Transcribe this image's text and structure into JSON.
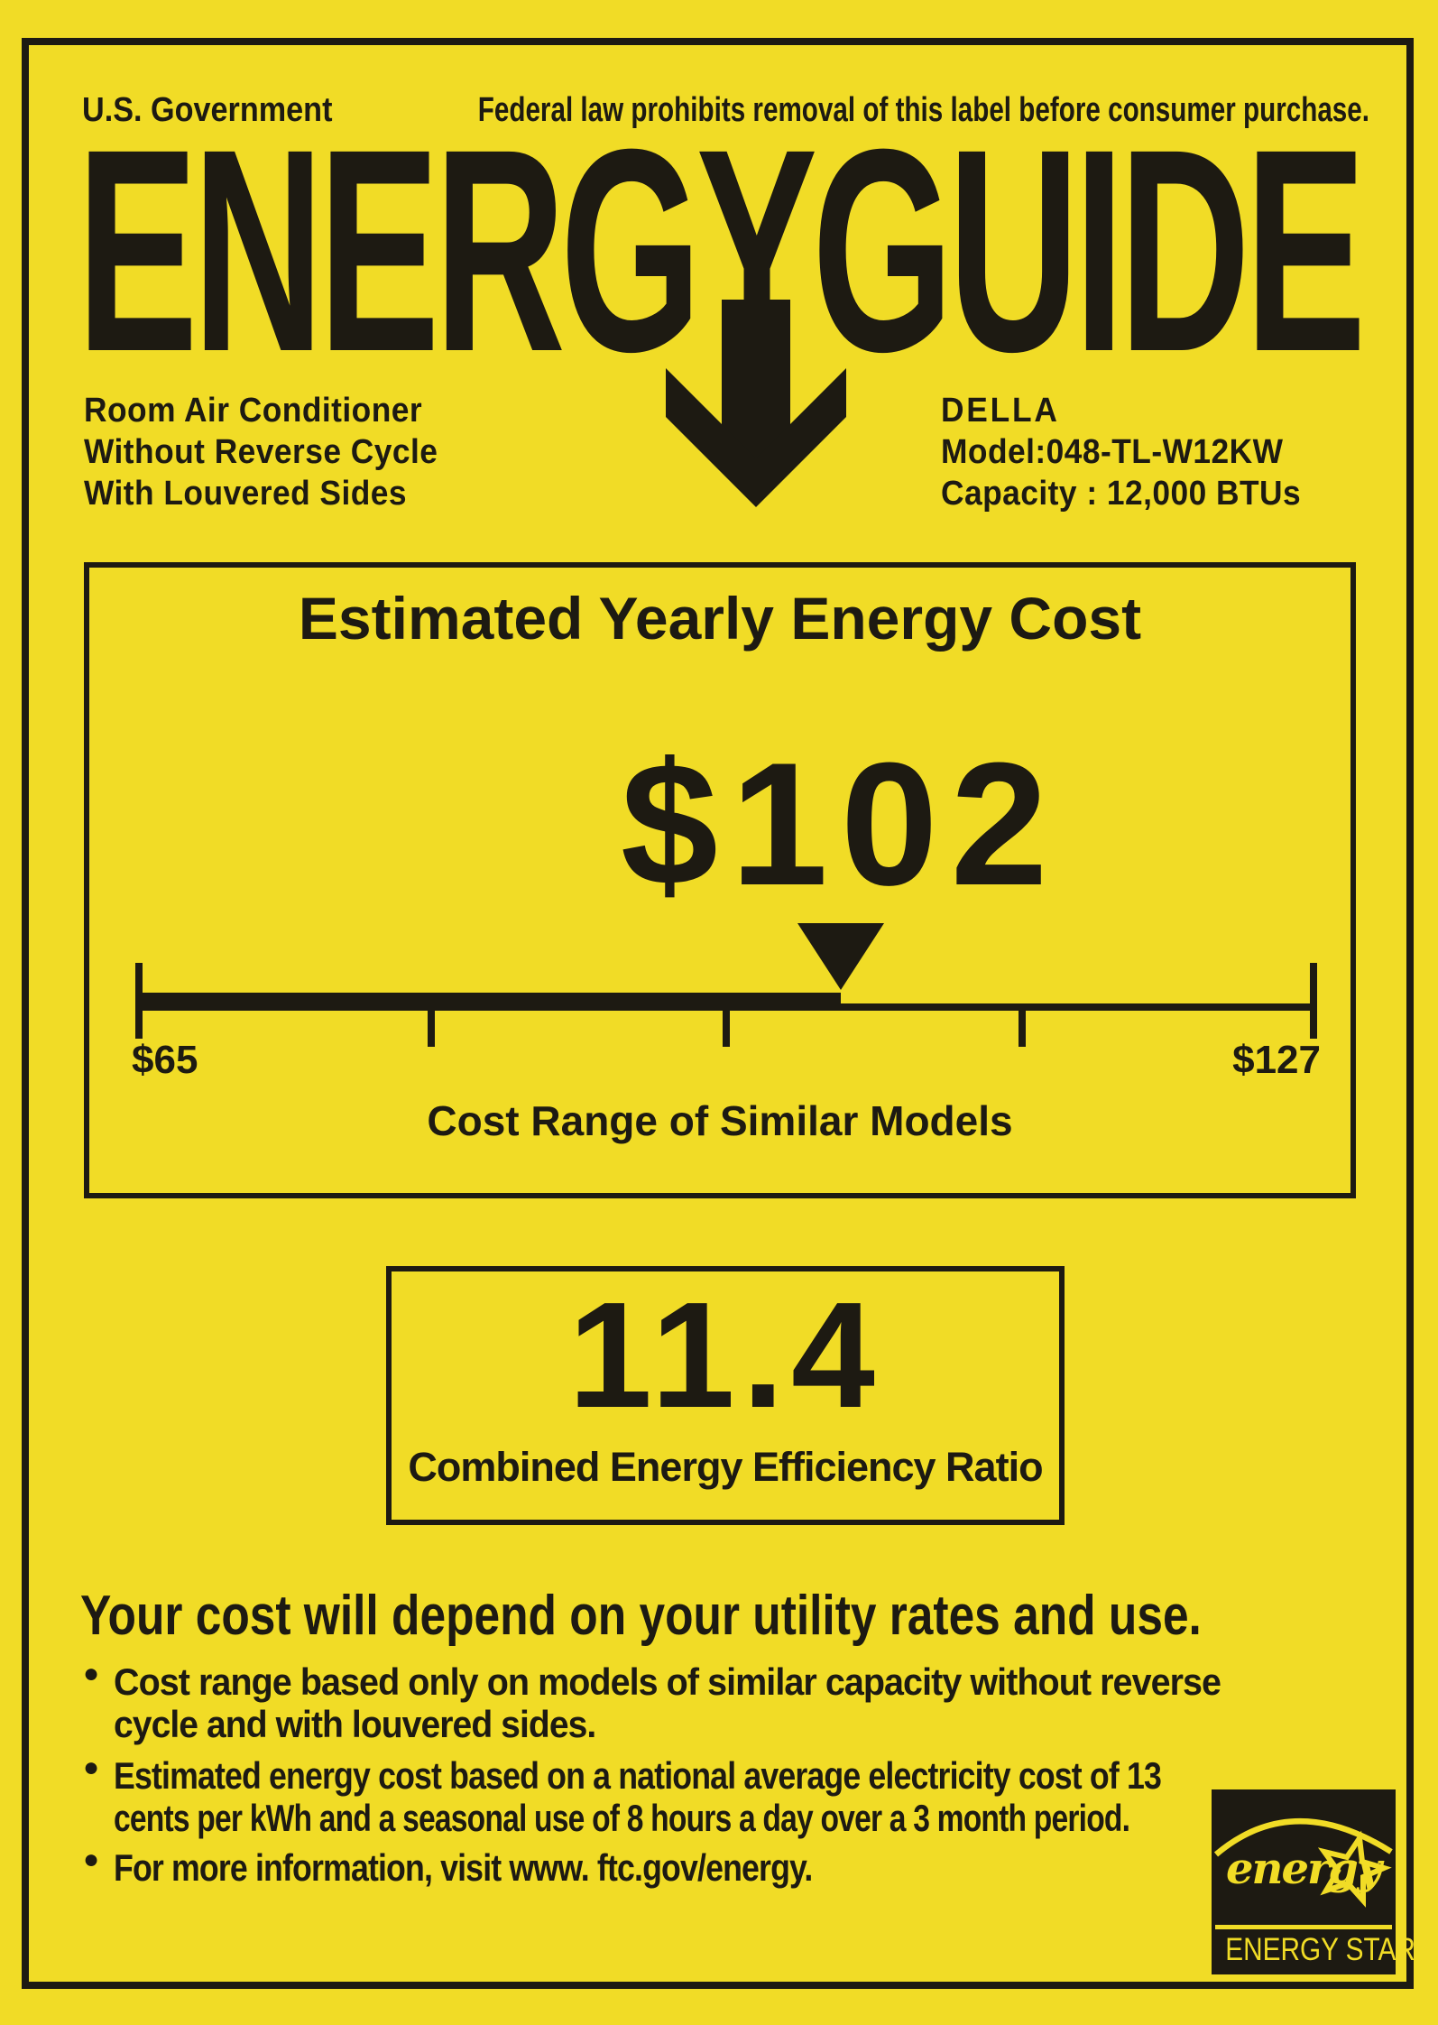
{
  "colors": {
    "background_yellow": "#f1dc26",
    "ink_black": "#1d1a12"
  },
  "header": {
    "government_label": "U.S. Government",
    "federal_notice": "Federal law prohibits removal of this label before consumer purchase.",
    "logo_text": "ENERGYGUIDE"
  },
  "product": {
    "type_lines": [
      "Room Air Conditioner",
      "Without Reverse Cycle",
      "With Louvered Sides"
    ],
    "brand": "DELLA",
    "model_label": "Model:048-TL-W12KW",
    "capacity_label": "Capacity : 12,000 BTUs"
  },
  "cost_box": {
    "title": "Estimated Yearly Energy Cost",
    "value_label": "$102",
    "caption": "Cost Range of Similar Models",
    "scale": {
      "min": 65,
      "max": 127,
      "value": 102,
      "min_label": "$65",
      "max_label": "$127"
    }
  },
  "ceer_box": {
    "value_label": "11.4",
    "label": "Combined Energy Efficiency Ratio"
  },
  "footer": {
    "heading": "Your cost will depend on your utility rates and use.",
    "bullets": [
      {
        "lines": [
          "Cost range based only on models of similar capacity without reverse",
          "cycle and with louvered sides."
        ]
      },
      {
        "lines": [
          "Estimated energy cost based on a national average electricity cost of 13",
          "cents per kWh and a seasonal use of 8 hours a day over a 3 month period."
        ]
      },
      {
        "lines": [
          "For more information, visit www. ftc.gov/energy."
        ]
      }
    ],
    "energy_star": {
      "script_text": "energy",
      "wordmark": "ENERGY STAR"
    }
  }
}
